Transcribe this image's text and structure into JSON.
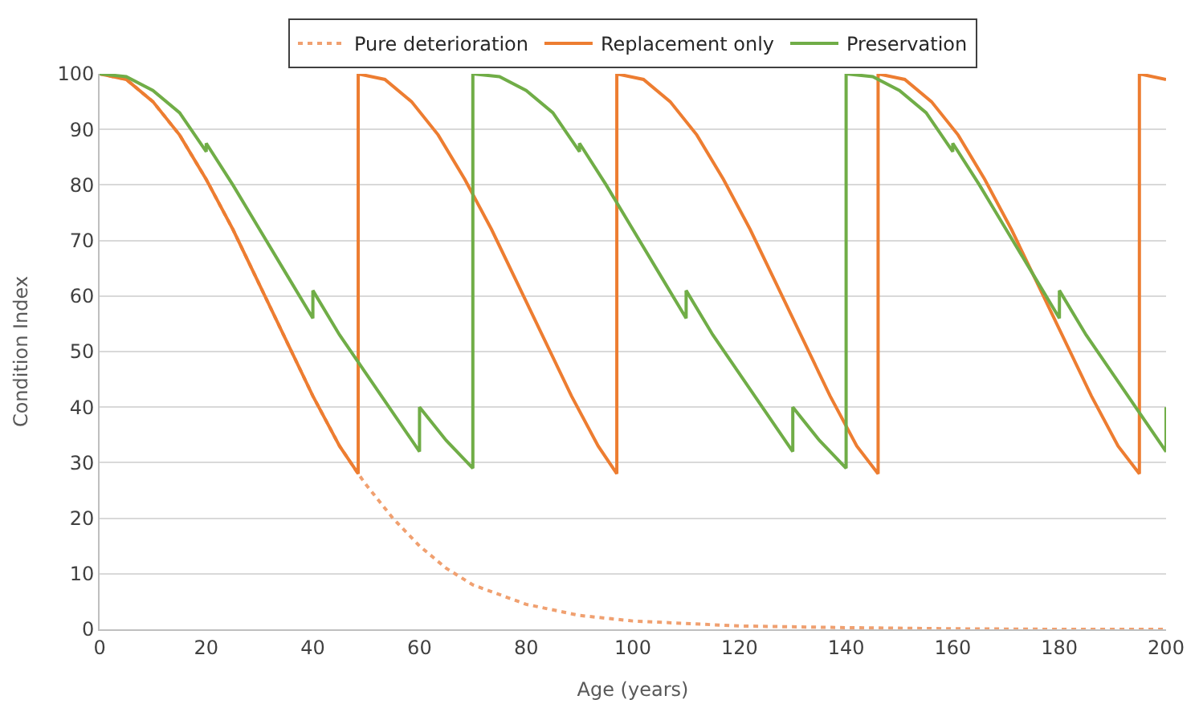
{
  "chart_data": {
    "type": "line",
    "xlabel": "Age (years)",
    "ylabel": "Condition Index",
    "xlim": [
      0,
      200
    ],
    "xticks": [
      0,
      20,
      40,
      60,
      80,
      100,
      120,
      140,
      160,
      180,
      200
    ],
    "ylim": [
      0,
      100
    ],
    "yticks": [
      0,
      10,
      20,
      30,
      40,
      50,
      60,
      70,
      80,
      90,
      100
    ],
    "grid": "y",
    "legend": "top",
    "marker": "none",
    "series": [
      {
        "name": "Pure deterioration",
        "color": "#f0a070",
        "line_style": "dotted",
        "x": [
          0,
          5,
          10,
          15,
          20,
          25,
          30,
          35,
          40,
          45,
          48.5,
          50,
          55,
          60,
          65,
          70,
          80,
          90,
          100,
          120,
          140,
          160,
          180,
          200
        ],
        "values": [
          100,
          99,
          95,
          89,
          81,
          72,
          62,
          52,
          42,
          33,
          28,
          26,
          20,
          15,
          11,
          8,
          4.5,
          2.5,
          1.5,
          0.6,
          0.3,
          0.1,
          0,
          0
        ]
      },
      {
        "name": "Replacement only",
        "color": "#ed7d31",
        "line_style": "solid",
        "x": [
          0,
          5,
          10,
          15,
          20,
          25,
          30,
          35,
          40,
          45,
          48.5,
          48.5,
          53.5,
          58.5,
          63.5,
          68.5,
          73.5,
          78.5,
          83.5,
          88.5,
          93.5,
          97,
          97,
          102,
          107,
          112,
          117,
          122,
          127,
          132,
          137,
          142,
          146,
          146,
          151,
          156,
          161,
          166,
          171,
          176,
          181,
          186,
          191,
          195,
          195,
          200
        ],
        "values": [
          100,
          99,
          95,
          89,
          81,
          72,
          62,
          52,
          42,
          33,
          28,
          100,
          99,
          95,
          89,
          81,
          72,
          62,
          52,
          42,
          33,
          28,
          100,
          99,
          95,
          89,
          81,
          72,
          62,
          52,
          42,
          33,
          28,
          100,
          99,
          95,
          89,
          81,
          72,
          62,
          52,
          42,
          33,
          28,
          100,
          99
        ]
      },
      {
        "name": "Preservation",
        "color": "#70ad47",
        "line_style": "solid",
        "x": [
          0,
          5,
          10,
          15,
          20,
          20,
          25,
          30,
          35,
          40,
          40,
          45,
          50,
          55,
          60,
          60,
          65,
          70,
          70,
          75,
          80,
          85,
          90,
          90,
          95,
          100,
          105,
          110,
          110,
          115,
          120,
          125,
          130,
          130,
          135,
          140,
          140,
          145,
          150,
          155,
          160,
          160,
          165,
          170,
          175,
          180,
          180,
          185,
          190,
          195,
          200,
          200
        ],
        "values": [
          100,
          99.5,
          97,
          93,
          86,
          87.5,
          80,
          72,
          64,
          56,
          61,
          53,
          46,
          39,
          32,
          40,
          34,
          29,
          100,
          99.5,
          97,
          93,
          86,
          87.5,
          80,
          72,
          64,
          56,
          61,
          53,
          46,
          39,
          32,
          40,
          34,
          29,
          100,
          99.5,
          97,
          93,
          86,
          87.5,
          80,
          72,
          64,
          56,
          61,
          53,
          46,
          39,
          32,
          40
        ]
      }
    ]
  }
}
